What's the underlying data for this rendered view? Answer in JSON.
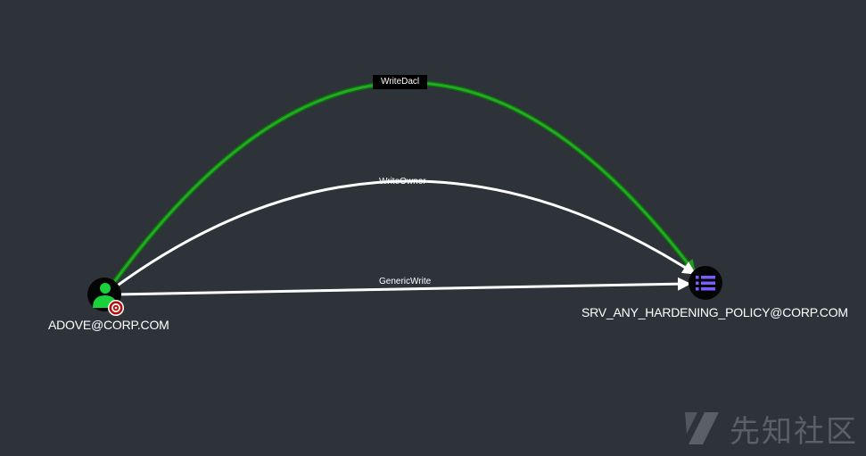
{
  "nodes": {
    "user": {
      "label": "ADOVE@CORP.COM",
      "type": "user",
      "color": "#19d13a",
      "badge": "target-icon"
    },
    "gpo": {
      "label": "SRV_ANY_HARDENING_POLICY@CORP.COM",
      "type": "gpo",
      "color": "#7b5cff",
      "icon": "list-icon"
    }
  },
  "edges": [
    {
      "label": "WriteDacl",
      "from": "ADOVE@CORP.COM",
      "to": "SRV_ANY_HARDENING_POLICY@CORP.COM",
      "highlighted": true,
      "color": "#1f9b1f"
    },
    {
      "label": "WriteOwner",
      "from": "ADOVE@CORP.COM",
      "to": "SRV_ANY_HARDENING_POLICY@CORP.COM",
      "highlighted": false,
      "color": "#ffffff"
    },
    {
      "label": "GenericWrite",
      "from": "ADOVE@CORP.COM",
      "to": "SRV_ANY_HARDENING_POLICY@CORP.COM",
      "highlighted": false,
      "color": "#ffffff"
    }
  ],
  "watermark": {
    "text": "先知社区"
  },
  "colors": {
    "background": "#2e333a",
    "highlight_edge": "#1f9b1f",
    "normal_edge": "#ffffff"
  }
}
